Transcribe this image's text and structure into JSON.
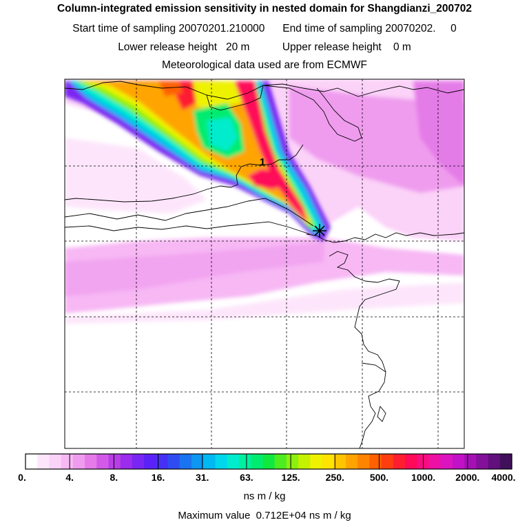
{
  "header": {
    "title": "Column-integrated emission sensitivity in nested domain for Shangdianzi_200702",
    "start": "Start time of sampling 20070201.210000",
    "end": "End time of sampling 20070202.     0",
    "lower": "Lower release height   20 m",
    "upper": "Upper release height    0 m",
    "met": "Meteorological data used are from ECMWF"
  },
  "map": {
    "marker_label": "1",
    "icons": [
      "receptor-star-icon"
    ]
  },
  "colorbar": {
    "ticks": [
      "0.",
      "4.",
      "8.",
      "16.",
      "31.",
      "63.",
      "125.",
      "250.",
      "500.",
      "1000.",
      "2000.",
      "4000."
    ],
    "units": "ns m / kg",
    "colors": [
      "#ffffff",
      "#fde6fb",
      "#fbd2f8",
      "#f7b8f4",
      "#ef9cee",
      "#e47be8",
      "#d35ae6",
      "#b83ee6",
      "#9b2bed",
      "#7a26f2",
      "#5b22f7",
      "#4630f5",
      "#2f4cf2",
      "#1a73f0",
      "#0d96f2",
      "#00b8f2",
      "#00d6ec",
      "#00eccc",
      "#00f0a0",
      "#00ec70",
      "#10e840",
      "#4cec20",
      "#8cf010",
      "#c4f200",
      "#eef200",
      "#ffe400",
      "#ffc400",
      "#ffa400",
      "#ff8400",
      "#ff6000",
      "#ff3e10",
      "#ff1e30",
      "#ff0a58",
      "#f80c80",
      "#ec10a4",
      "#dc14c0",
      "#c212c8",
      "#a410b4",
      "#84109a",
      "#62107c",
      "#40105a"
    ]
  },
  "footer": {
    "max_value": "Maximum value  0.712E+04 ns m / kg"
  }
}
